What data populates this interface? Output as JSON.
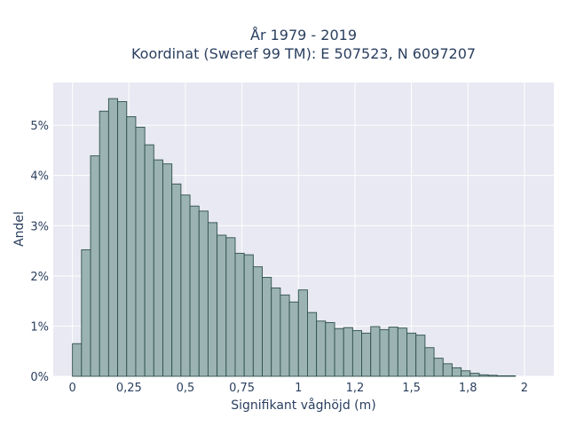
{
  "chart_data": {
    "type": "bar",
    "title_lines": [
      "År 1979 - 2019",
      "Koordinat (Sweref 99 TM): E 507523, N 6097207"
    ],
    "xlabel": "Signifikant våghöjd (m)",
    "ylabel": "Andel",
    "xlim": [
      -0.085,
      2.13
    ],
    "ylim": [
      0,
      5.85
    ],
    "grid": true,
    "bin_width": 0.04,
    "bin_start": 0.0,
    "x_ticks": [
      {
        "value": 0,
        "label": "0"
      },
      {
        "value": 0.25,
        "label": "0,25"
      },
      {
        "value": 0.5,
        "label": "0,5"
      },
      {
        "value": 0.75,
        "label": "0,75"
      },
      {
        "value": 1.0,
        "label": "1"
      },
      {
        "value": 1.25,
        "label": "1,2"
      },
      {
        "value": 1.5,
        "label": "1,5"
      },
      {
        "value": 1.75,
        "label": "1,8"
      },
      {
        "value": 2.0,
        "label": "2"
      }
    ],
    "y_ticks": [
      {
        "value": 0,
        "label": "0%"
      },
      {
        "value": 1,
        "label": "1%"
      },
      {
        "value": 2,
        "label": "2%"
      },
      {
        "value": 3,
        "label": "3%"
      },
      {
        "value": 4,
        "label": "4%"
      },
      {
        "value": 5,
        "label": "5%"
      }
    ],
    "values": [
      0.65,
      2.52,
      4.39,
      5.28,
      5.53,
      5.47,
      5.17,
      4.96,
      4.61,
      4.31,
      4.23,
      3.83,
      3.61,
      3.39,
      3.29,
      3.06,
      2.81,
      2.76,
      2.45,
      2.42,
      2.18,
      1.97,
      1.76,
      1.62,
      1.48,
      1.72,
      1.27,
      1.1,
      1.07,
      0.95,
      0.97,
      0.91,
      0.86,
      0.99,
      0.93,
      0.98,
      0.96,
      0.86,
      0.82,
      0.57,
      0.36,
      0.25,
      0.17,
      0.11,
      0.06,
      0.03,
      0.02,
      0.01,
      0.01
    ]
  }
}
